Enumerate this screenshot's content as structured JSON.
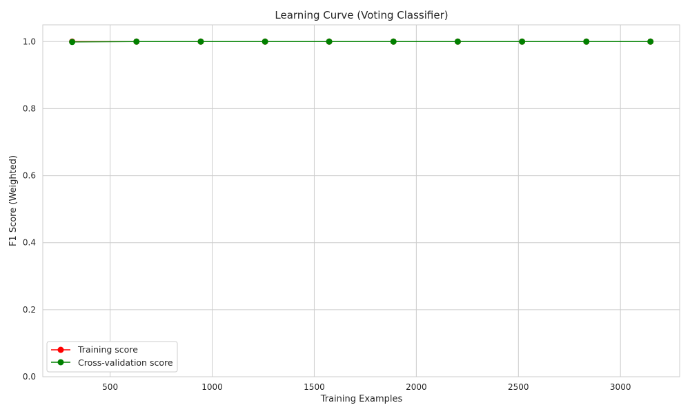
{
  "chart_data": {
    "type": "line",
    "title": "Learning Curve (Voting Classifier)",
    "xlabel": "Training Examples",
    "ylabel": "F1 Score (Weighted)",
    "xlim": [
      170,
      3290
    ],
    "ylim": [
      0.0,
      1.05
    ],
    "xticks": [
      500,
      1000,
      1500,
      2000,
      2500,
      3000
    ],
    "yticks": [
      0.0,
      0.2,
      0.4,
      0.6,
      0.8,
      1.0
    ],
    "x": [
      314,
      629,
      944,
      1259,
      1573,
      1888,
      2203,
      2518,
      2833,
      3147
    ],
    "series": [
      {
        "name": "Training score",
        "color": "#ff0000",
        "marker": "circle",
        "values": [
          1.0,
          1.0,
          1.0,
          1.0,
          1.0,
          1.0,
          1.0,
          1.0,
          1.0,
          1.0
        ]
      },
      {
        "name": "Cross-validation score",
        "color": "#008000",
        "marker": "circle",
        "values": [
          0.999,
          1.0,
          1.0,
          1.0,
          1.0,
          1.0,
          1.0,
          1.0,
          1.0,
          1.0
        ]
      }
    ],
    "grid": true,
    "legend_position": "lower-left"
  }
}
